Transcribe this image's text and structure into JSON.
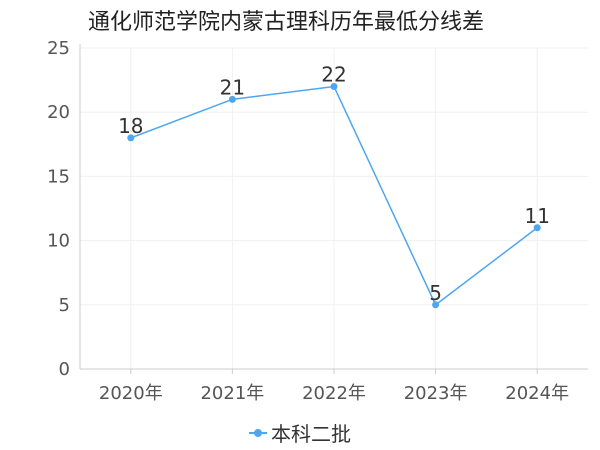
{
  "chart_data": {
    "type": "line",
    "title": "通化师范学院内蒙古理科历年最低分线差",
    "categories": [
      "2020年",
      "2021年",
      "2022年",
      "2023年",
      "2024年"
    ],
    "series": [
      {
        "name": "本科二批",
        "values": [
          18,
          21,
          22,
          5,
          11
        ],
        "color": "#4da6f0"
      }
    ],
    "ylim": [
      0,
      25
    ],
    "yticks": [
      0,
      5,
      10,
      15,
      20,
      25
    ],
    "grid": true,
    "legend": "bottom-center",
    "data_labels": true
  }
}
